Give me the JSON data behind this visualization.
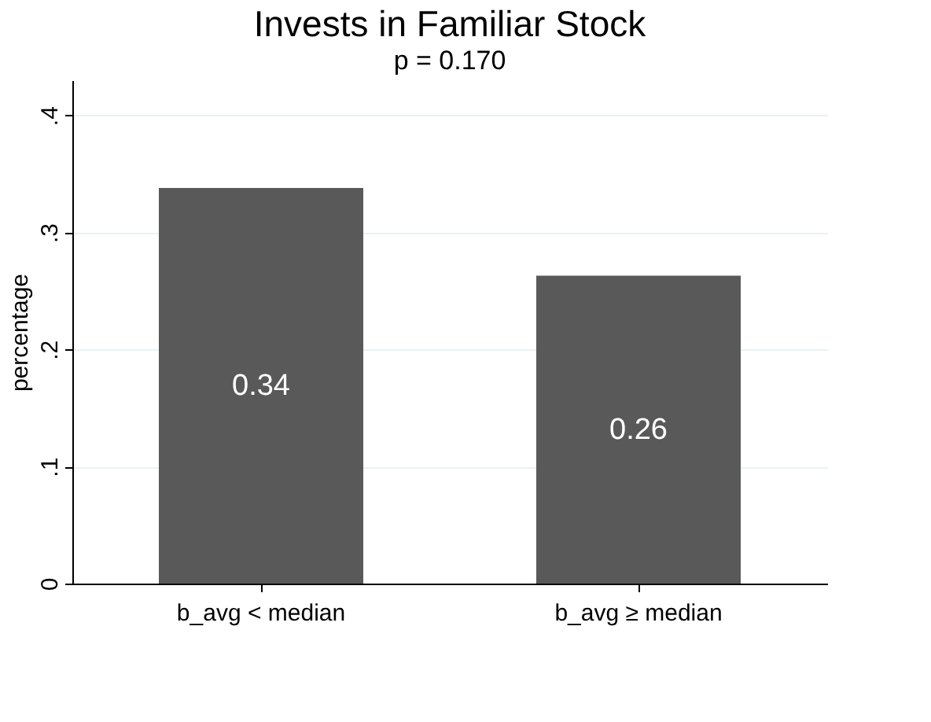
{
  "chart_data": {
    "type": "bar",
    "title": "Invests in Familiar Stock",
    "subtitle": "p = 0.170",
    "ylabel": "percentage",
    "categories": [
      "b_avg < median",
      "b_avg ≥ median"
    ],
    "values": [
      0.338,
      0.263
    ],
    "color": "#595959",
    "value_labels": [
      "0.34",
      "0.26"
    ],
    "ylim": [
      0,
      0.43
    ],
    "yticks": [
      0,
      {
        "value": 0.1,
        "label": ".1"
      },
      {
        "value": 0.2,
        "label": ".2"
      },
      {
        "value": 0.3,
        "label": ".3"
      },
      {
        "value": 0.4,
        "label": ".4"
      }
    ],
    "grid": "y"
  }
}
